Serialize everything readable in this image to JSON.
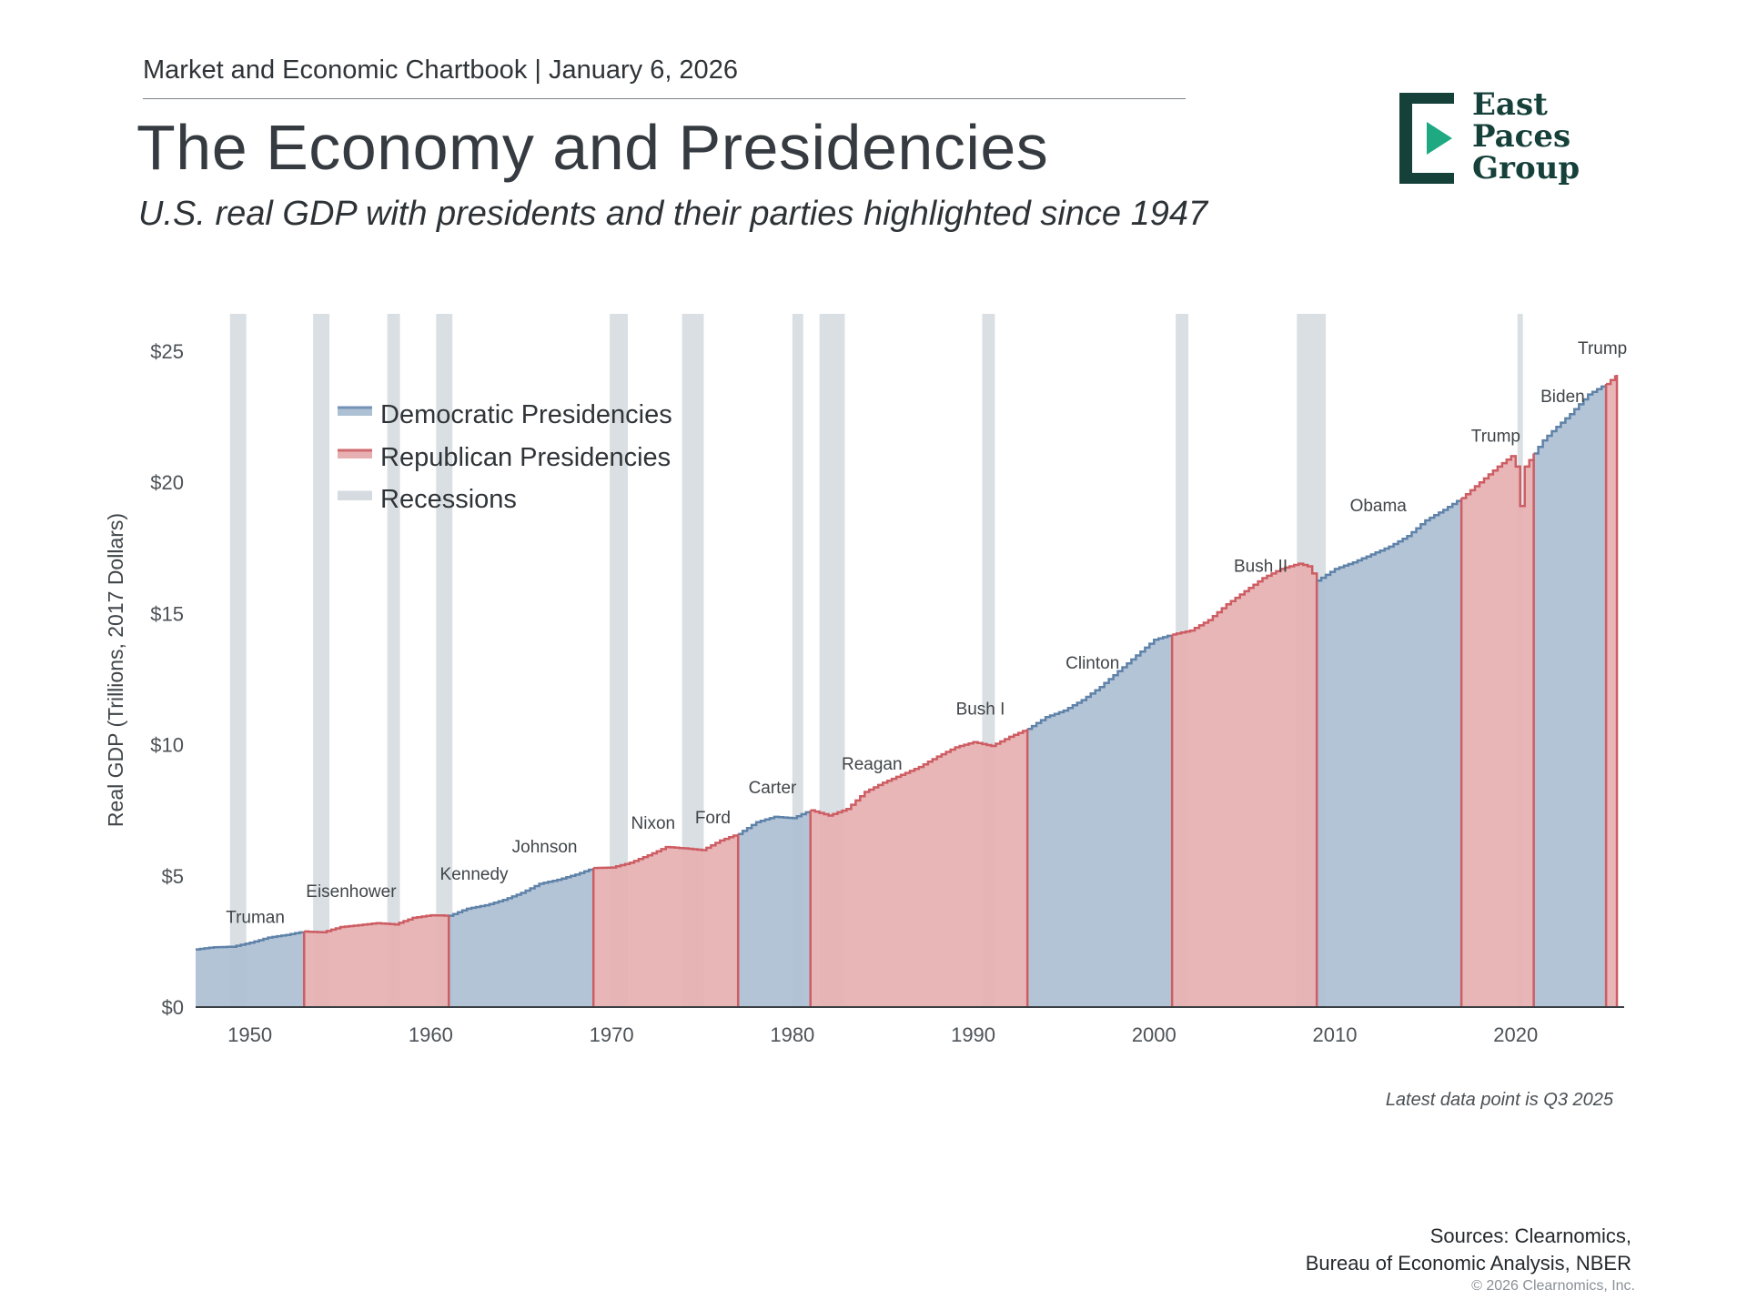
{
  "header": {
    "publication": "Market and Economic Chartbook | January 6, 2026",
    "title": "The Economy and Presidencies",
    "subtitle": "U.S. real GDP with presidents and their parties highlighted since 1947"
  },
  "logo": {
    "line1": "East",
    "line2": "Paces",
    "line3": "Group",
    "color_dark": "#16403a",
    "color_accent": "#1fa982"
  },
  "footer": {
    "note": "Latest data point is Q3 2025",
    "sources_line1": "Sources: Clearnomics,",
    "sources_line2": "Bureau of Economic Analysis, NBER",
    "copyright": "© 2026 Clearnomics, Inc."
  },
  "chart_data": {
    "type": "area",
    "ylabel": "Real GDP (Trillions, 2017 Dollars)",
    "xlim": [
      1947,
      2026
    ],
    "ylim": [
      0,
      25
    ],
    "x_ticks": [
      1950,
      1960,
      1970,
      1980,
      1990,
      2000,
      2010,
      2020
    ],
    "x_tick_labels": [
      "1950",
      "1960",
      "1970",
      "1980",
      "1990",
      "2000",
      "2010",
      "2020"
    ],
    "y_ticks": [
      0,
      5,
      10,
      15,
      20,
      25
    ],
    "y_tick_labels": [
      "$0",
      "$5",
      "$10",
      "$15",
      "$20",
      "$25"
    ],
    "grid": false,
    "legend_position": "top-left",
    "legend": [
      {
        "label": "Democratic Presidencies",
        "color": "#7392b6"
      },
      {
        "label": "Republican Presidencies",
        "color": "#cf6a6e"
      },
      {
        "label": "Recessions",
        "color": "#d5dbe0"
      }
    ],
    "colors": {
      "dem_fill": "#adc0d4",
      "dem_line": "#5f82a8",
      "rep_fill": "#e6b0b2",
      "rep_line": "#cd5d63",
      "recession": "#d5dbe0"
    },
    "gdp": [
      [
        1947,
        2.2
      ],
      [
        1948,
        2.28
      ],
      [
        1949,
        2.3
      ],
      [
        1950,
        2.45
      ],
      [
        1951,
        2.65
      ],
      [
        1952,
        2.75
      ],
      [
        1953,
        2.88
      ],
      [
        1954,
        2.85
      ],
      [
        1955,
        3.05
      ],
      [
        1956,
        3.12
      ],
      [
        1957,
        3.2
      ],
      [
        1958,
        3.15
      ],
      [
        1959,
        3.4
      ],
      [
        1960,
        3.5
      ],
      [
        1961,
        3.48
      ],
      [
        1962,
        3.75
      ],
      [
        1963,
        3.88
      ],
      [
        1964,
        4.08
      ],
      [
        1965,
        4.35
      ],
      [
        1966,
        4.7
      ],
      [
        1967,
        4.85
      ],
      [
        1968,
        5.05
      ],
      [
        1969,
        5.3
      ],
      [
        1970,
        5.32
      ],
      [
        1971,
        5.5
      ],
      [
        1972,
        5.78
      ],
      [
        1973,
        6.1
      ],
      [
        1974,
        6.05
      ],
      [
        1975,
        5.98
      ],
      [
        1976,
        6.35
      ],
      [
        1977,
        6.6
      ],
      [
        1978,
        7.05
      ],
      [
        1979,
        7.25
      ],
      [
        1980,
        7.2
      ],
      [
        1981,
        7.5
      ],
      [
        1982,
        7.3
      ],
      [
        1983,
        7.55
      ],
      [
        1984,
        8.2
      ],
      [
        1985,
        8.55
      ],
      [
        1986,
        8.85
      ],
      [
        1987,
        9.15
      ],
      [
        1988,
        9.55
      ],
      [
        1989,
        9.9
      ],
      [
        1990,
        10.1
      ],
      [
        1991,
        9.95
      ],
      [
        1992,
        10.3
      ],
      [
        1993,
        10.6
      ],
      [
        1994,
        11.05
      ],
      [
        1995,
        11.3
      ],
      [
        1996,
        11.7
      ],
      [
        1997,
        12.2
      ],
      [
        1998,
        12.8
      ],
      [
        1999,
        13.4
      ],
      [
        2000,
        14.0
      ],
      [
        2001,
        14.2
      ],
      [
        2002,
        14.35
      ],
      [
        2003,
        14.75
      ],
      [
        2004,
        15.35
      ],
      [
        2005,
        15.85
      ],
      [
        2006,
        16.35
      ],
      [
        2007,
        16.7
      ],
      [
        2008,
        16.9
      ],
      [
        2008.5,
        16.8
      ],
      [
        2009,
        16.25
      ],
      [
        2010,
        16.7
      ],
      [
        2011,
        16.95
      ],
      [
        2012,
        17.25
      ],
      [
        2013,
        17.55
      ],
      [
        2014,
        17.95
      ],
      [
        2015,
        18.55
      ],
      [
        2016,
        18.95
      ],
      [
        2017,
        19.4
      ],
      [
        2018,
        20.0
      ],
      [
        2019,
        20.6
      ],
      [
        2019.75,
        21.0
      ],
      [
        2020.0,
        20.6
      ],
      [
        2020.1,
        19.1
      ],
      [
        2020.4,
        19.1
      ],
      [
        2020.5,
        20.6
      ],
      [
        2021,
        21.1
      ],
      [
        2021.5,
        21.6
      ],
      [
        2022,
        21.95
      ],
      [
        2023,
        22.6
      ],
      [
        2024,
        23.35
      ],
      [
        2025,
        23.75
      ],
      [
        2025.6,
        24.1
      ]
    ],
    "presidencies": [
      {
        "name": "Truman",
        "party": "D",
        "start": 1947,
        "end": 1953,
        "label_x": 1950.3,
        "label_y": 3.2
      },
      {
        "name": "Eisenhower",
        "party": "R",
        "start": 1953,
        "end": 1961,
        "label_x": 1955.6,
        "label_y": 4.2
      },
      {
        "name": "Kennedy",
        "party": "D",
        "start": 1961,
        "end": 1969,
        "label_x": 1962.4,
        "label_y": 4.85
      },
      {
        "name": "Johnson",
        "party": "D",
        "start": 1963.9,
        "end": 1969,
        "label_x": 1966.3,
        "label_y": 5.9
      },
      {
        "name": "Nixon",
        "party": "R",
        "start": 1969,
        "end": 1974.6,
        "label_x": 1972.3,
        "label_y": 6.8
      },
      {
        "name": "Ford",
        "party": "R",
        "start": 1974.6,
        "end": 1977,
        "label_x": 1975.6,
        "label_y": 7.0
      },
      {
        "name": "Carter",
        "party": "D",
        "start": 1977,
        "end": 1981,
        "label_x": 1978.9,
        "label_y": 8.15
      },
      {
        "name": "Reagan",
        "party": "R",
        "start": 1981,
        "end": 1989,
        "label_x": 1984.4,
        "label_y": 9.05
      },
      {
        "name": "Bush I",
        "party": "R",
        "start": 1989,
        "end": 1993,
        "label_x": 1990.4,
        "label_y": 11.15
      },
      {
        "name": "Clinton",
        "party": "D",
        "start": 1993,
        "end": 2001,
        "label_x": 1996.6,
        "label_y": 12.9
      },
      {
        "name": "Bush II",
        "party": "R",
        "start": 2001,
        "end": 2009,
        "label_x": 2005.9,
        "label_y": 16.6
      },
      {
        "name": "Obama",
        "party": "D",
        "start": 2009,
        "end": 2017,
        "label_x": 2012.4,
        "label_y": 18.9
      },
      {
        "name": "Trump",
        "party": "R",
        "start": 2017,
        "end": 2021,
        "label_x": 2018.9,
        "label_y": 21.55
      },
      {
        "name": "Biden",
        "party": "D",
        "start": 2021,
        "end": 2025,
        "label_x": 2022.6,
        "label_y": 23.05
      },
      {
        "name": "Trump",
        "party": "R",
        "start": 2025,
        "end": 2025.6,
        "label_x": 2024.8,
        "label_y": 24.9
      }
    ],
    "recessions": [
      [
        1948.9,
        1949.8
      ],
      [
        1953.5,
        1954.4
      ],
      [
        1957.6,
        1958.3
      ],
      [
        1960.3,
        1961.2
      ],
      [
        1969.9,
        1970.9
      ],
      [
        1973.9,
        1975.1
      ],
      [
        1980.0,
        1980.6
      ],
      [
        1981.5,
        1982.9
      ],
      [
        1990.5,
        1991.2
      ],
      [
        2001.2,
        2001.9
      ],
      [
        2007.9,
        2009.5
      ],
      [
        2020.1,
        2020.4
      ]
    ]
  }
}
